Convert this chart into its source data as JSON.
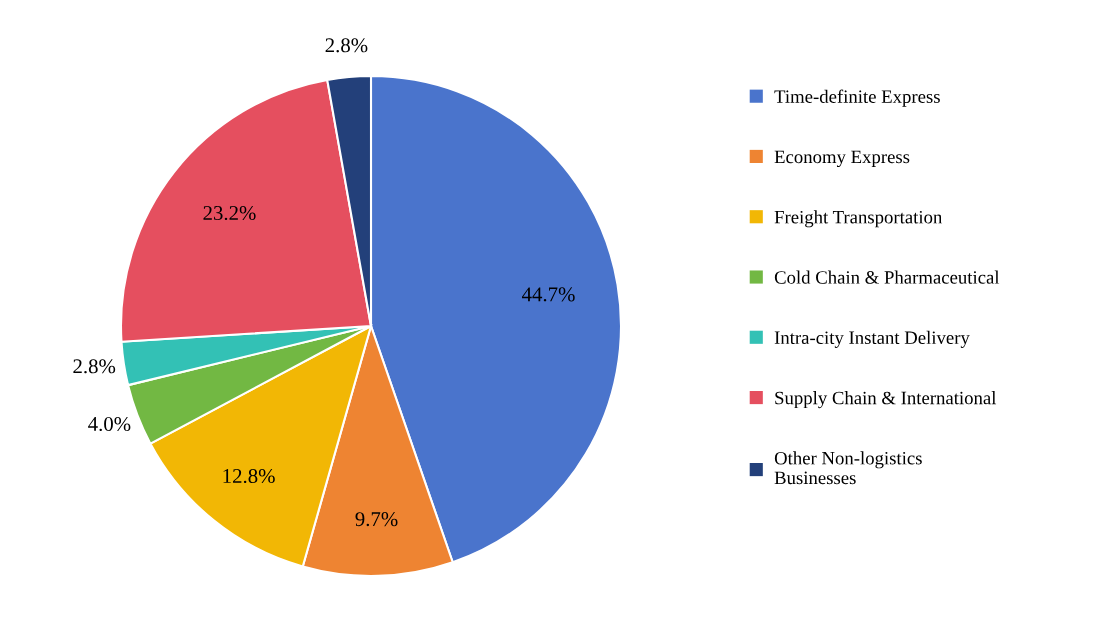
{
  "chart_data": {
    "type": "pie",
    "categories": [
      "Time-definite Express",
      "Economy Express",
      "Freight Transportation",
      "Cold Chain & Pharmaceutical",
      "Intra-city Instant Delivery",
      "Supply Chain & International",
      "Other Non-logistics Businesses"
    ],
    "values": [
      44.7,
      9.7,
      12.8,
      4.0,
      2.8,
      23.2,
      2.8
    ],
    "colors": [
      "#4a74cc",
      "#ee8432",
      "#f2b705",
      "#72b843",
      "#33c1b5",
      "#e54f5f",
      "#23407a"
    ],
    "value_labels": [
      "44.7%",
      "9.7%",
      "12.8%",
      "4.0%",
      "2.8%",
      "23.2%",
      "2.8%"
    ],
    "legend": "right"
  }
}
